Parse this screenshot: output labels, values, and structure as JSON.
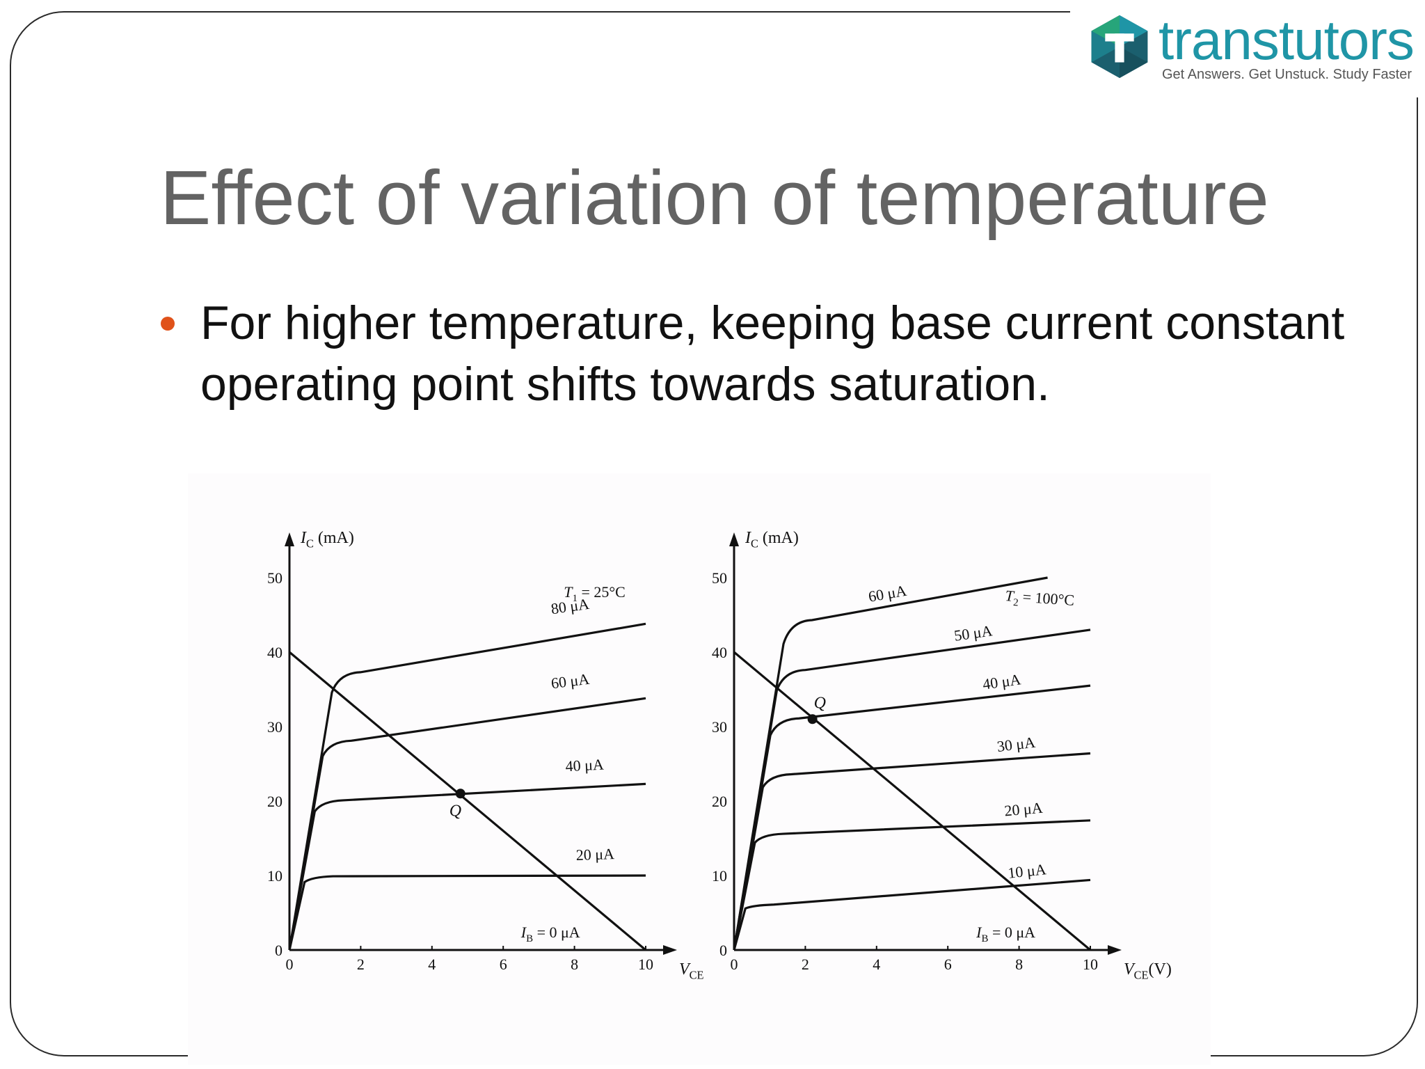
{
  "logo": {
    "name": "transtutors",
    "tagline": "Get Answers. Get Unstuck. Study Faster",
    "colors": {
      "teal": "#1f95a6",
      "dark": "#1b5f6e",
      "green": "#27a57a"
    }
  },
  "slide": {
    "title": "Effect of variation of temperature",
    "bullet": "For higher temperature, keeping base current constant operating point shifts towards saturation.",
    "bullet_color": "#e0521a",
    "title_color": "#636363"
  },
  "graphs": [
    {
      "id": "left",
      "y_label": "I",
      "y_label_sub": "C",
      "y_label_unit": "(mA)",
      "x_label": "V",
      "x_label_sub": "CE",
      "x_label_unit": "",
      "temperature": "T",
      "temperature_sub": "1",
      "temperature_value": "= 25°C",
      "x_ticks": [
        "0",
        "2",
        "4",
        "6",
        "8",
        "10"
      ],
      "y_ticks": [
        "0",
        "10",
        "20",
        "30",
        "40",
        "50"
      ],
      "curves": [
        {
          "label": "80 μA",
          "sat": 37.2,
          "end": 43.8
        },
        {
          "label": "60 μA",
          "sat": 28.0,
          "end": 33.8
        },
        {
          "label": "40 μA",
          "sat": 20.0,
          "end": 22.3
        },
        {
          "label": "20 μA",
          "sat": 9.8,
          "end": 10.0
        }
      ],
      "ib_zero_label": "= 0 μA",
      "ib_symbol": "I",
      "ib_sub": "B",
      "load_line": {
        "vce_max": 10,
        "ic_max": 40
      },
      "q_point": {
        "label": "Q",
        "vce": 4.8,
        "ic": 21.0
      }
    },
    {
      "id": "right",
      "y_label": "I",
      "y_label_sub": "C",
      "y_label_unit": "(mA)",
      "x_label": "V",
      "x_label_sub": "CE",
      "x_label_unit": "(V)",
      "temperature": "T",
      "temperature_sub": "2",
      "temperature_value": "= 100°C",
      "x_ticks": [
        "0",
        "2",
        "4",
        "6",
        "8",
        "10"
      ],
      "y_ticks": [
        "0",
        "10",
        "20",
        "30",
        "40",
        "50"
      ],
      "curves": [
        {
          "label": "60 μA",
          "sat": 44.2,
          "end": 50.0,
          "end_vce": 8.8
        },
        {
          "label": "50 μA",
          "sat": 37.5,
          "end": 43.0
        },
        {
          "label": "40 μA",
          "sat": 31.0,
          "end": 35.5
        },
        {
          "label": "30 μA",
          "sat": 23.5,
          "end": 26.4
        },
        {
          "label": "20 μA",
          "sat": 15.5,
          "end": 17.4
        },
        {
          "label": "10 μA",
          "sat": 6.0,
          "end": 9.4
        }
      ],
      "ib_zero_label": "= 0 μA",
      "ib_symbol": "I",
      "ib_sub": "B",
      "load_line": {
        "vce_max": 10,
        "ic_max": 40
      },
      "q_point": {
        "label": "Q",
        "vce": 2.2,
        "ic": 31.0
      }
    }
  ]
}
